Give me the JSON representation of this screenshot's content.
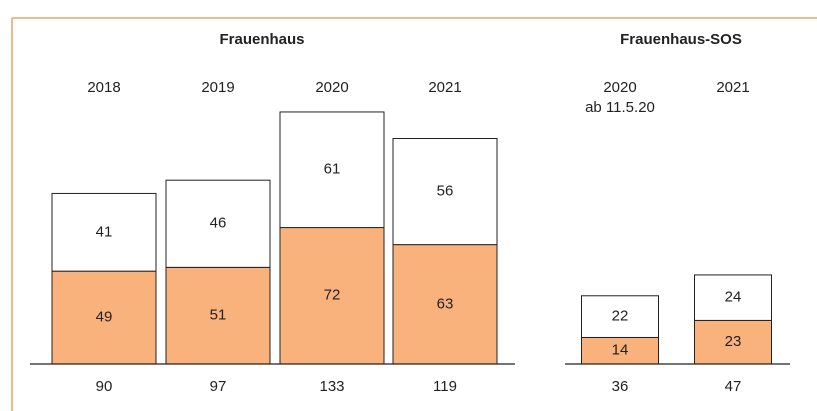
{
  "chart_data": [
    {
      "type": "stacked-bar",
      "title": "Frauenhaus",
      "categories": [
        "2018",
        "2019",
        "2020",
        "2021"
      ],
      "series": [
        {
          "color": "#f9b27c",
          "values": [
            49,
            51,
            72,
            63
          ]
        },
        {
          "color": "#ffffff",
          "values": [
            41,
            46,
            61,
            56
          ]
        }
      ],
      "totals": [
        90,
        97,
        133,
        119
      ]
    },
    {
      "type": "stacked-bar",
      "title": "Frauenhaus-SOS",
      "categories": [
        "2020",
        "2021"
      ],
      "annotation": "ab 11.5.20",
      "series": [
        {
          "color": "#f9b27c",
          "values": [
            14,
            23
          ]
        },
        {
          "color": "#ffffff",
          "values": [
            22,
            24
          ]
        }
      ],
      "totals": [
        36,
        47
      ]
    }
  ]
}
